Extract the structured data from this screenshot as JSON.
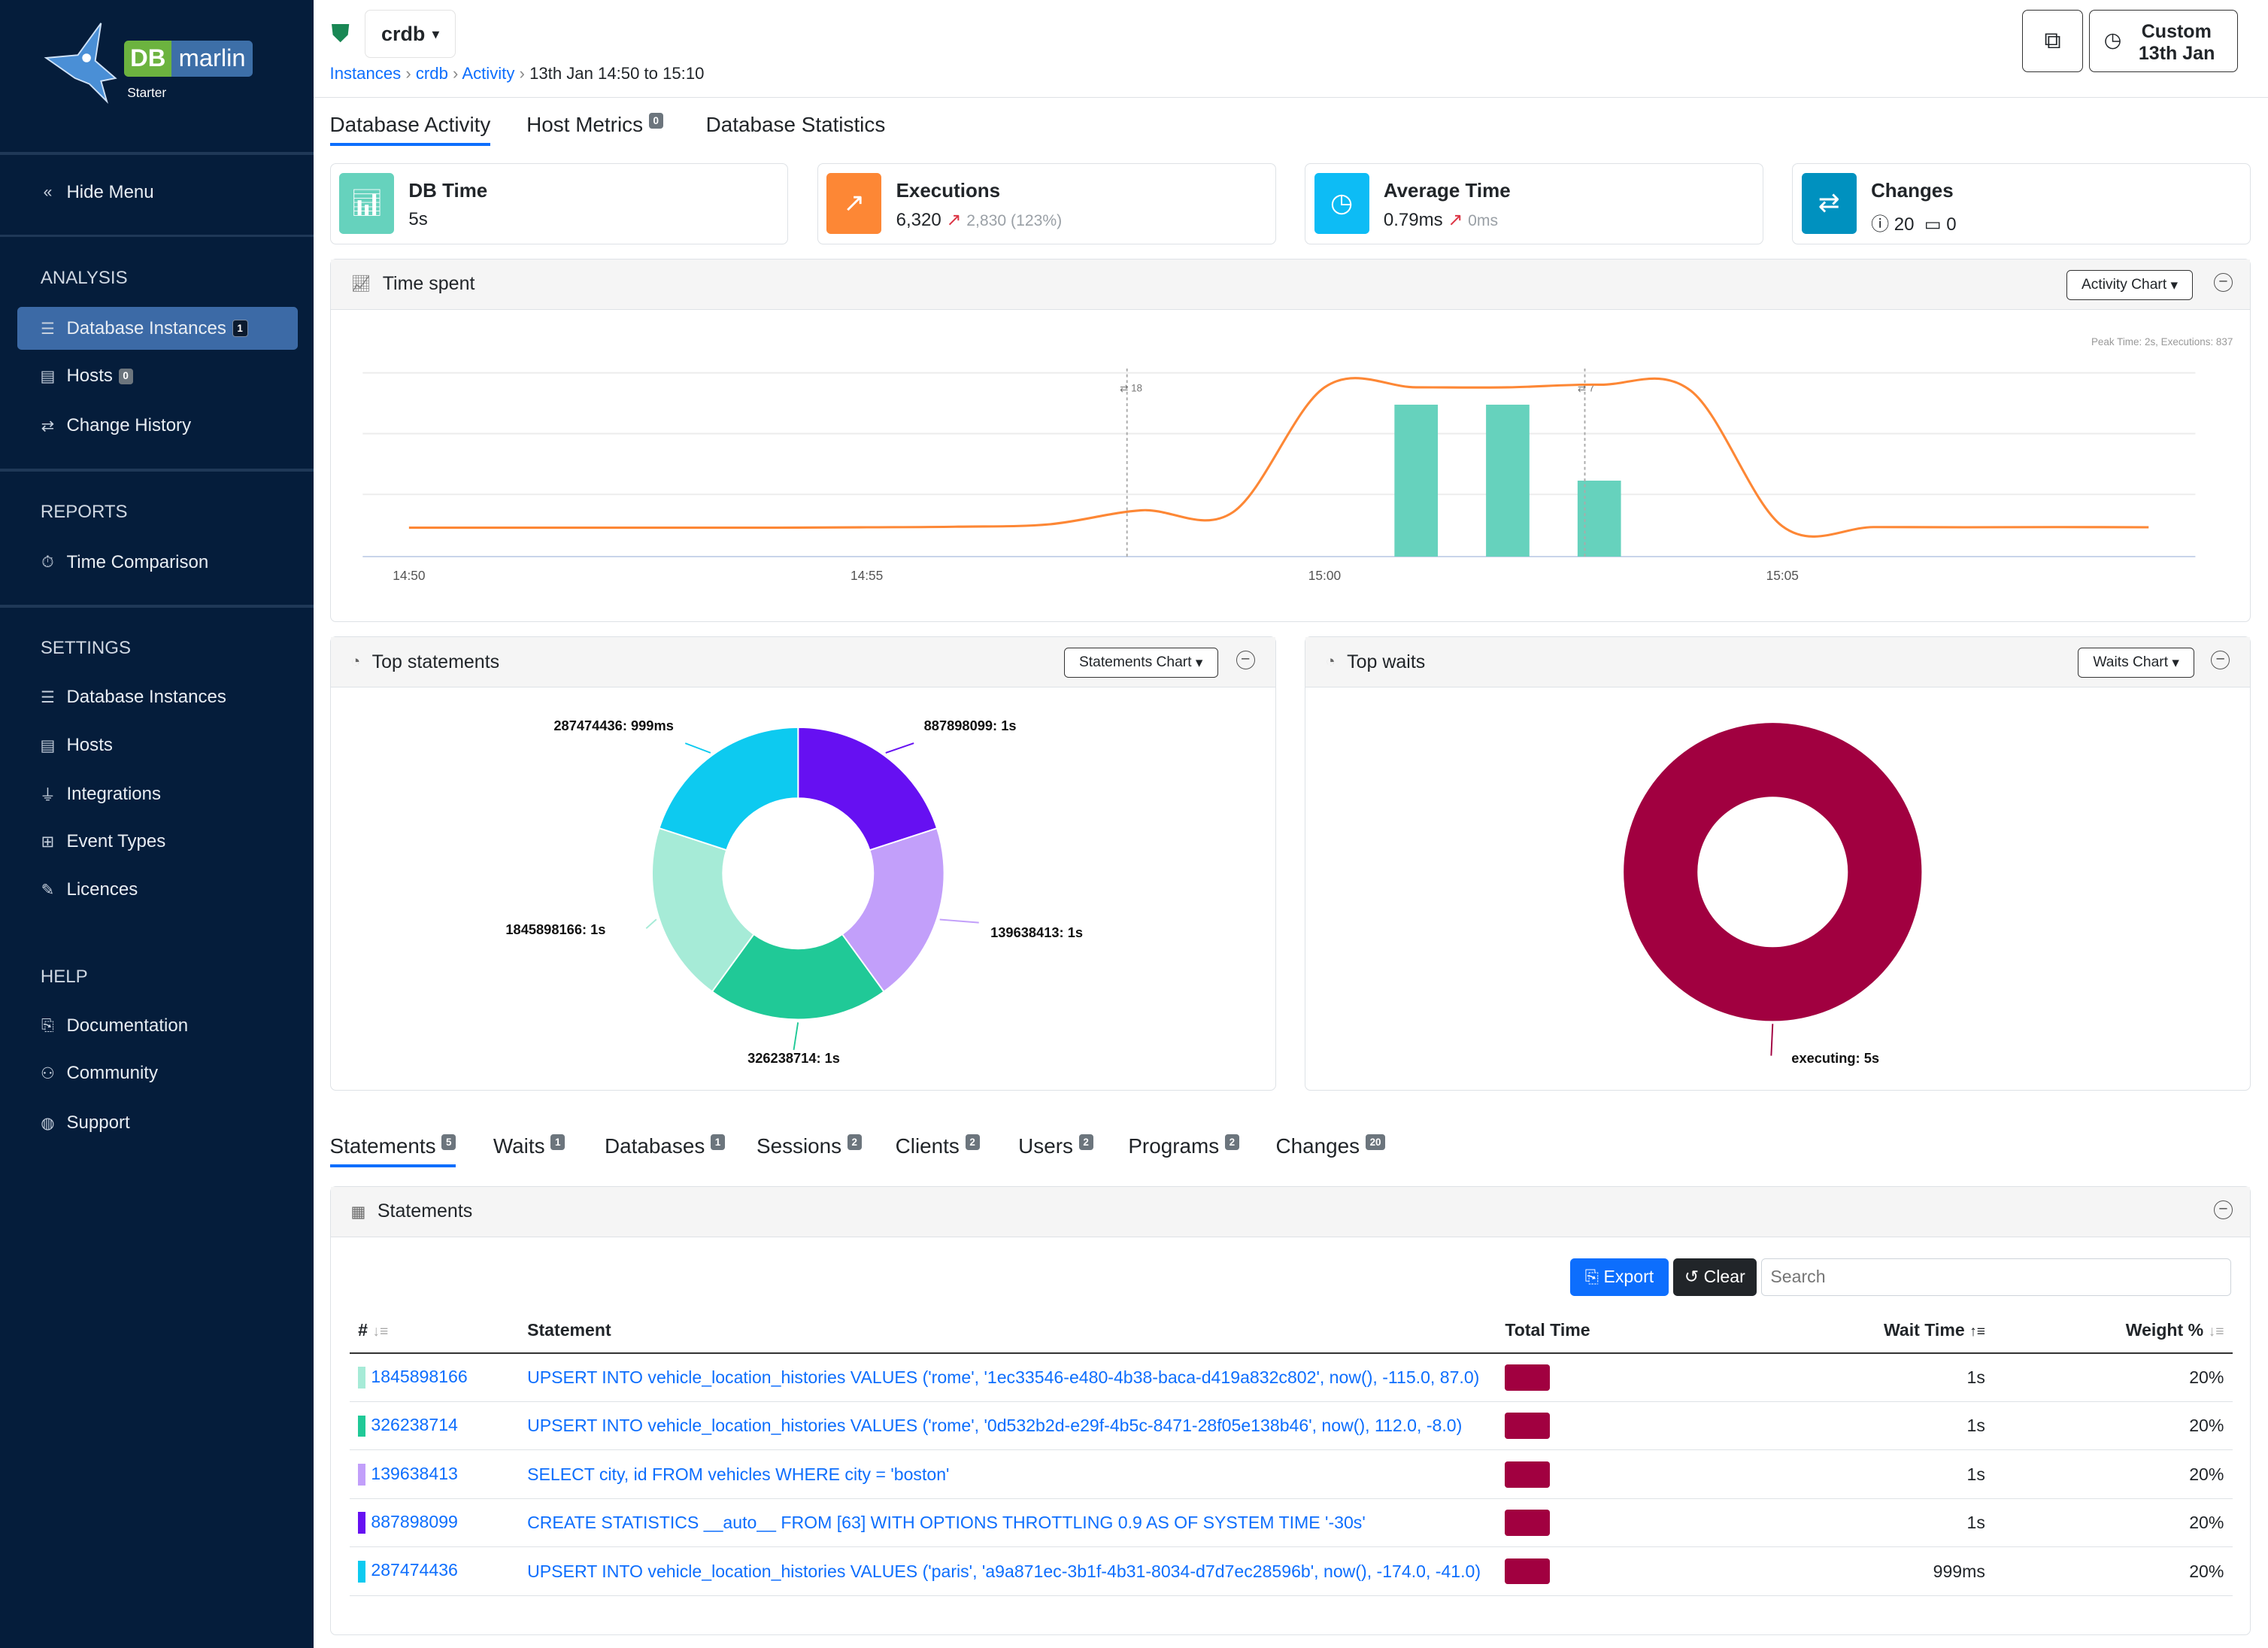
{
  "app": {
    "brand": "DB marlin",
    "brand_db": "DB",
    "brand_name": "marlin",
    "edition": "Starter"
  },
  "sidebar": {
    "hide_menu": "Hide Menu",
    "sections": [
      {
        "title": "ANALYSIS",
        "items": [
          {
            "label": "Database Instances",
            "icon": "database-icon",
            "badge": "1",
            "active": true
          },
          {
            "label": "Hosts",
            "icon": "server-icon",
            "badge": "0"
          },
          {
            "label": "Change History",
            "icon": "arrows-exchange-icon"
          }
        ]
      },
      {
        "title": "REPORTS",
        "items": [
          {
            "label": "Time Comparison",
            "icon": "stopwatch-icon"
          }
        ]
      },
      {
        "title": "SETTINGS",
        "items": [
          {
            "label": "Database Instances",
            "icon": "database-icon"
          },
          {
            "label": "Hosts",
            "icon": "server-icon"
          },
          {
            "label": "Integrations",
            "icon": "plug-icon"
          },
          {
            "label": "Event Types",
            "icon": "network-icon"
          },
          {
            "label": "Licences",
            "icon": "certificate-icon"
          }
        ]
      },
      {
        "title": "HELP",
        "items": [
          {
            "label": "Documentation",
            "icon": "book-icon"
          },
          {
            "label": "Community",
            "icon": "people-icon"
          },
          {
            "label": "Support",
            "icon": "globe-icon"
          }
        ]
      }
    ]
  },
  "header": {
    "instance": "crdb",
    "status_icon": "shield-check-icon",
    "breadcrumb": [
      "Instances",
      "crdb",
      "Activity"
    ],
    "breadcrumb_current": "13th Jan 14:50 to 15:10",
    "time_range_line1": "Custom",
    "time_range_line2": "13th Jan",
    "copy_icon": "copy-icon"
  },
  "main_tabs": [
    {
      "label": "Database Activity",
      "active": true
    },
    {
      "label": "Host Metrics",
      "badge": "0"
    },
    {
      "label": "Database Statistics"
    }
  ],
  "kpis": [
    {
      "title": "DB Time",
      "value": "5s",
      "color": "#66d2bd",
      "icon": "bar-chart-icon"
    },
    {
      "title": "Executions",
      "value": "6,320",
      "delta": "2,830 (123%)",
      "color": "#fd8735",
      "icon": "line-chart-icon"
    },
    {
      "title": "Average Time",
      "value": "0.79ms",
      "delta": "0ms",
      "color": "#0dbcf5",
      "icon": "clock-icon"
    },
    {
      "title": "Changes",
      "info_count": "20",
      "calendar_count": "0",
      "color": "#0091bf",
      "icon": "arrows-exchange-icon"
    }
  ],
  "time_spent": {
    "title": "Time spent",
    "dropdown": "Activity Chart",
    "peak_note": "Peak Time: 2s, Executions: 837",
    "markers": [
      {
        "x": "14:58",
        "label": "18"
      },
      {
        "x": "15:03",
        "label": "7"
      }
    ]
  },
  "chart_data": [
    {
      "type": "bar+line",
      "x_ticks": [
        "14:50",
        "14:55",
        "15:00",
        "15:05"
      ],
      "bars": {
        "x": [
          "15:01",
          "15:02",
          "15:03"
        ],
        "values": [
          2,
          2,
          1
        ],
        "unit": "s",
        "color": "#66d2bd"
      },
      "line": {
        "x": [
          "14:50",
          "14:51",
          "14:52",
          "14:53",
          "14:54",
          "14:55",
          "14:56",
          "14:57",
          "14:58",
          "14:59",
          "15:00",
          "15:01",
          "15:02",
          "15:03",
          "15:04",
          "15:05",
          "15:06",
          "15:07",
          "15:08",
          "15:09"
        ],
        "values": [
          143,
          143,
          143,
          143,
          143,
          145,
          148,
          160,
          229,
          220,
          837,
          837,
          837,
          850,
          820,
          150,
          146,
          145,
          146,
          145
        ],
        "color": "#fd8735"
      },
      "grid": true
    },
    {
      "type": "pie",
      "title": "Top statements",
      "dropdown": "Statements Chart",
      "slices": [
        {
          "label": "887898099: 1s",
          "value": 1,
          "color": "#6610f2"
        },
        {
          "label": "139638413: 1s",
          "value": 1,
          "color": "#c29ffa"
        },
        {
          "label": "326238714: 1s",
          "value": 1,
          "color": "#20c997"
        },
        {
          "label": "1845898166: 1s",
          "value": 1,
          "color": "#a6ebd7"
        },
        {
          "label": "287474436: 999ms",
          "value": 0.999,
          "color": "#0dcaf0"
        }
      ]
    },
    {
      "type": "pie",
      "title": "Top waits",
      "dropdown": "Waits Chart",
      "slices": [
        {
          "label": "executing: 5s",
          "value": 5,
          "color": "#a10040"
        }
      ]
    }
  ],
  "detail_tabs": [
    {
      "label": "Statements",
      "badge": "5",
      "active": true
    },
    {
      "label": "Waits",
      "badge": "1"
    },
    {
      "label": "Databases",
      "badge": "1"
    },
    {
      "label": "Sessions",
      "badge": "2"
    },
    {
      "label": "Clients",
      "badge": "2"
    },
    {
      "label": "Users",
      "badge": "2"
    },
    {
      "label": "Programs",
      "badge": "2"
    },
    {
      "label": "Changes",
      "badge": "20"
    }
  ],
  "statements": {
    "title": "Statements",
    "export": "Export",
    "clear": "Clear",
    "search_placeholder": "Search",
    "columns": [
      "#",
      "Statement",
      "Total Time",
      "Wait Time",
      "Weight %"
    ],
    "rows": [
      {
        "id": "1845898166",
        "color": "#a6ebd7",
        "statement": "UPSERT INTO vehicle_location_histories VALUES ('rome', '1ec33546-e480-4b38-baca-d419a832c802', now(), -115.0, 87.0)",
        "wait": "1s",
        "weight": "20%"
      },
      {
        "id": "326238714",
        "color": "#20c997",
        "statement": "UPSERT INTO vehicle_location_histories VALUES ('rome', '0d532b2d-e29f-4b5c-8471-28f05e138b46', now(), 112.0, -8.0)",
        "wait": "1s",
        "weight": "20%"
      },
      {
        "id": "139638413",
        "color": "#c29ffa",
        "statement": "SELECT city, id FROM vehicles WHERE city = 'boston'",
        "wait": "1s",
        "weight": "20%"
      },
      {
        "id": "887898099",
        "color": "#6610f2",
        "statement": "CREATE STATISTICS __auto__ FROM [63] WITH OPTIONS THROTTLING 0.9 AS OF SYSTEM TIME '-30s'",
        "wait": "1s",
        "weight": "20%"
      },
      {
        "id": "287474436",
        "color": "#0dcaf0",
        "statement": "UPSERT INTO vehicle_location_histories VALUES ('paris', 'a9a871ec-3b1f-4b31-8034-d7d7ec28596b', now(), -174.0, -41.0)",
        "wait": "999ms",
        "weight": "20%"
      }
    ]
  }
}
